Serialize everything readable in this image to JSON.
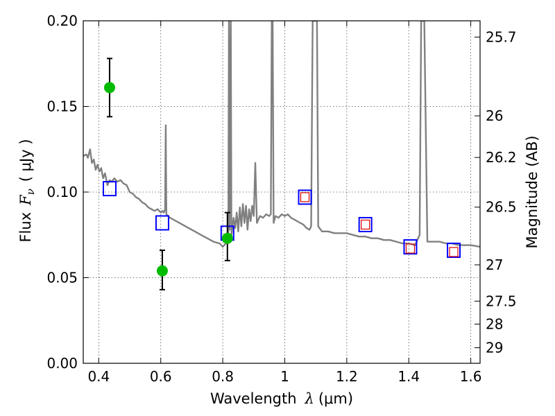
{
  "chart_data": {
    "type": "line",
    "xlabel": "Wavelength",
    "xlabel_symbol": "λ",
    "xlabel_unit": "(μm)",
    "ylabel": "Flux",
    "ylabel_symbol": "F",
    "ylabel_subscript": "ν",
    "ylabel_unit": "( μJy )",
    "y2label": "Magnitude (AB)",
    "xlim": [
      0.35,
      1.63
    ],
    "ylim": [
      0.0,
      0.2
    ],
    "xticks": [
      {
        "value": 0.4,
        "label": "0.4"
      },
      {
        "value": 0.6,
        "label": "0.6"
      },
      {
        "value": 0.8,
        "label": "0.8"
      },
      {
        "value": 1.0,
        "label": "1"
      },
      {
        "value": 1.2,
        "label": "1.2"
      },
      {
        "value": 1.4,
        "label": "1.4"
      },
      {
        "value": 1.6,
        "label": "1.6"
      }
    ],
    "yticks": [
      {
        "value": 0.0,
        "label": "0.00"
      },
      {
        "value": 0.05,
        "label": "0.05"
      },
      {
        "value": 0.1,
        "label": "0.10"
      },
      {
        "value": 0.15,
        "label": "0.15"
      },
      {
        "value": 0.2,
        "label": "0.20"
      }
    ],
    "y2ticks": [
      {
        "label": "25.7",
        "flux": 0.1905
      },
      {
        "label": "26",
        "flux": 0.1445
      },
      {
        "label": "26.2",
        "flux": 0.1202
      },
      {
        "label": "26.5",
        "flux": 0.0912
      },
      {
        "label": "27",
        "flux": 0.0575
      },
      {
        "label": "27.5",
        "flux": 0.0363
      },
      {
        "label": "28",
        "flux": 0.0229
      },
      {
        "label": "29",
        "flux": 0.0091
      }
    ],
    "grid": true,
    "colors": {
      "spectrum": "#808080",
      "model_photometry": "#0000ff",
      "observed_photometry": "#dd0000",
      "detections": "#00bb00",
      "error_bars": "#000000"
    },
    "series": [
      {
        "kind": "spectrum",
        "points": [
          [
            0.35,
            0.121
          ],
          [
            0.36,
            0.122
          ],
          [
            0.365,
            0.12
          ],
          [
            0.372,
            0.125
          ],
          [
            0.378,
            0.117
          ],
          [
            0.384,
            0.119
          ],
          [
            0.39,
            0.113
          ],
          [
            0.396,
            0.116
          ],
          [
            0.402,
            0.112
          ],
          [
            0.408,
            0.114
          ],
          [
            0.414,
            0.108
          ],
          [
            0.42,
            0.111
          ],
          [
            0.428,
            0.104
          ],
          [
            0.435,
            0.107
          ],
          [
            0.442,
            0.106
          ],
          [
            0.45,
            0.108
          ],
          [
            0.46,
            0.106
          ],
          [
            0.47,
            0.107
          ],
          [
            0.48,
            0.105
          ],
          [
            0.49,
            0.104
          ],
          [
            0.5,
            0.1
          ],
          [
            0.51,
            0.099
          ],
          [
            0.52,
            0.097
          ],
          [
            0.53,
            0.096
          ],
          [
            0.54,
            0.094
          ],
          [
            0.55,
            0.093
          ],
          [
            0.56,
            0.091
          ],
          [
            0.57,
            0.09
          ],
          [
            0.58,
            0.089
          ],
          [
            0.59,
            0.09
          ],
          [
            0.6,
            0.088
          ],
          [
            0.605,
            0.089
          ],
          [
            0.61,
            0.088
          ],
          [
            0.614,
            0.09
          ],
          [
            0.616,
            0.139
          ],
          [
            0.618,
            0.087
          ],
          [
            0.63,
            0.085
          ],
          [
            0.65,
            0.083
          ],
          [
            0.67,
            0.081
          ],
          [
            0.69,
            0.079
          ],
          [
            0.71,
            0.077
          ],
          [
            0.73,
            0.075
          ],
          [
            0.75,
            0.073
          ],
          [
            0.77,
            0.071
          ],
          [
            0.79,
            0.07
          ],
          [
            0.8,
            0.068
          ],
          [
            0.81,
            0.07
          ],
          [
            0.818,
            0.072
          ],
          [
            0.82,
            0.2
          ],
          [
            0.822,
            0.078
          ],
          [
            0.826,
            0.2
          ],
          [
            0.828,
            0.075
          ],
          [
            0.835,
            0.085
          ],
          [
            0.84,
            0.079
          ],
          [
            0.845,
            0.088
          ],
          [
            0.85,
            0.077
          ],
          [
            0.855,
            0.091
          ],
          [
            0.86,
            0.08
          ],
          [
            0.865,
            0.093
          ],
          [
            0.87,
            0.082
          ],
          [
            0.875,
            0.092
          ],
          [
            0.88,
            0.078
          ],
          [
            0.885,
            0.09
          ],
          [
            0.89,
            0.083
          ],
          [
            0.895,
            0.092
          ],
          [
            0.9,
            0.086
          ],
          [
            0.905,
            0.117
          ],
          [
            0.91,
            0.082
          ],
          [
            0.92,
            0.086
          ],
          [
            0.93,
            0.085
          ],
          [
            0.94,
            0.087
          ],
          [
            0.95,
            0.086
          ],
          [
            0.955,
            0.087
          ],
          [
            0.958,
            0.2
          ],
          [
            0.961,
            0.2
          ],
          [
            0.964,
            0.082
          ],
          [
            0.97,
            0.086
          ],
          [
            0.98,
            0.085
          ],
          [
            0.99,
            0.087
          ],
          [
            1.0,
            0.086
          ],
          [
            1.01,
            0.087
          ],
          [
            1.02,
            0.085
          ],
          [
            1.03,
            0.084
          ],
          [
            1.04,
            0.083
          ],
          [
            1.05,
            0.082
          ],
          [
            1.06,
            0.081
          ],
          [
            1.07,
            0.079
          ],
          [
            1.08,
            0.078
          ],
          [
            1.085,
            0.08
          ],
          [
            1.09,
            0.2
          ],
          [
            1.104,
            0.2
          ],
          [
            1.108,
            0.08
          ],
          [
            1.12,
            0.077
          ],
          [
            1.14,
            0.077
          ],
          [
            1.16,
            0.076
          ],
          [
            1.18,
            0.076
          ],
          [
            1.2,
            0.076
          ],
          [
            1.22,
            0.075
          ],
          [
            1.24,
            0.074
          ],
          [
            1.26,
            0.074
          ],
          [
            1.28,
            0.073
          ],
          [
            1.3,
            0.073
          ],
          [
            1.32,
            0.072
          ],
          [
            1.34,
            0.072
          ],
          [
            1.36,
            0.071
          ],
          [
            1.38,
            0.07
          ],
          [
            1.4,
            0.07
          ],
          [
            1.42,
            0.069
          ],
          [
            1.435,
            0.075
          ],
          [
            1.44,
            0.2
          ],
          [
            1.45,
            0.2
          ],
          [
            1.46,
            0.071
          ],
          [
            1.48,
            0.071
          ],
          [
            1.5,
            0.071
          ],
          [
            1.52,
            0.07
          ],
          [
            1.54,
            0.07
          ],
          [
            1.56,
            0.069
          ],
          [
            1.58,
            0.069
          ],
          [
            1.6,
            0.069
          ],
          [
            1.63,
            0.068
          ]
        ]
      },
      {
        "kind": "model_photometry",
        "points": [
          [
            0.435,
            0.102
          ],
          [
            0.605,
            0.082
          ],
          [
            0.815,
            0.076
          ],
          [
            1.065,
            0.097
          ],
          [
            1.26,
            0.081
          ],
          [
            1.405,
            0.068
          ],
          [
            1.545,
            0.066
          ]
        ]
      },
      {
        "kind": "observed_photometry",
        "points": [
          [
            1.065,
            0.097
          ],
          [
            1.26,
            0.081
          ],
          [
            1.405,
            0.067
          ],
          [
            1.545,
            0.065
          ]
        ]
      },
      {
        "kind": "detections",
        "points": [
          {
            "x": 0.435,
            "y": 0.161,
            "ylo": 0.144,
            "yhi": 0.178
          },
          {
            "x": 0.605,
            "y": 0.054,
            "ylo": 0.043,
            "yhi": 0.066
          },
          {
            "x": 0.815,
            "y": 0.073,
            "ylo": 0.06,
            "yhi": 0.088
          }
        ]
      }
    ]
  }
}
